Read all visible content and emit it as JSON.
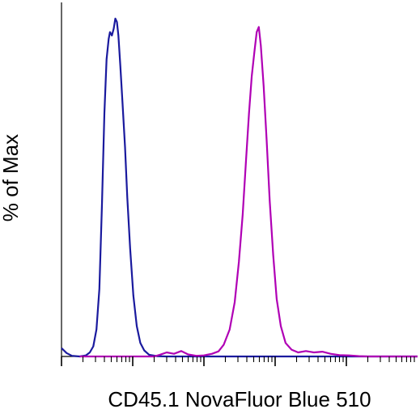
{
  "chart_data": {
    "type": "line",
    "title": "",
    "xlabel": "CD45.1 NovaFluor Blue 510",
    "ylabel": "% of Max",
    "xscale": "log",
    "xlim": [
      10,
      1000000
    ],
    "ylim": [
      0,
      100
    ],
    "grid": false,
    "legend": "none",
    "series": [
      {
        "color": "#1a1a9e",
        "points": [
          [
            10,
            2.5
          ],
          [
            11.8,
            1
          ],
          [
            14,
            0.2
          ],
          [
            18,
            0
          ],
          [
            22,
            0.3
          ],
          [
            25,
            1.2
          ],
          [
            28,
            3
          ],
          [
            31,
            8
          ],
          [
            34,
            20
          ],
          [
            37,
            45
          ],
          [
            40,
            72
          ],
          [
            43,
            88
          ],
          [
            46,
            94
          ],
          [
            48,
            96
          ],
          [
            51,
            95
          ],
          [
            54,
            97
          ],
          [
            57,
            100
          ],
          [
            60,
            99
          ],
          [
            63,
            95
          ],
          [
            67,
            86
          ],
          [
            72,
            75
          ],
          [
            78,
            62
          ],
          [
            84,
            47
          ],
          [
            92,
            32
          ],
          [
            102,
            18
          ],
          [
            114,
            9
          ],
          [
            128,
            4
          ],
          [
            145,
            1.8
          ],
          [
            170,
            0.5
          ],
          [
            220,
            0.1
          ],
          [
            300,
            0
          ],
          [
            1000000,
            0
          ]
        ]
      },
      {
        "color": "#b000b5",
        "points": [
          [
            18,
            0
          ],
          [
            200,
            0
          ],
          [
            240,
            0.5
          ],
          [
            300,
            1.2
          ],
          [
            380,
            0.8
          ],
          [
            480,
            1.6
          ],
          [
            600,
            0.6
          ],
          [
            780,
            0.2
          ],
          [
            1000,
            0.3
          ],
          [
            1300,
            0.8
          ],
          [
            1600,
            1.5
          ],
          [
            1900,
            3.5
          ],
          [
            2300,
            8
          ],
          [
            2700,
            16
          ],
          [
            3100,
            28
          ],
          [
            3500,
            42
          ],
          [
            3900,
            58
          ],
          [
            4300,
            72
          ],
          [
            4700,
            83
          ],
          [
            5100,
            90
          ],
          [
            5500,
            96
          ],
          [
            5900,
            97.5
          ],
          [
            6300,
            92
          ],
          [
            6900,
            80
          ],
          [
            7600,
            64
          ],
          [
            8400,
            46
          ],
          [
            9400,
            30
          ],
          [
            10500,
            17
          ],
          [
            12000,
            9
          ],
          [
            14000,
            4
          ],
          [
            17000,
            2
          ],
          [
            21000,
            1.2
          ],
          [
            27000,
            1.6
          ],
          [
            35000,
            1.2
          ],
          [
            46000,
            1.4
          ],
          [
            60000,
            0.8
          ],
          [
            80000,
            0.4
          ],
          [
            110000,
            0.3
          ],
          [
            150000,
            0.1
          ],
          [
            200000,
            0
          ],
          [
            1000000,
            0
          ]
        ]
      }
    ]
  }
}
